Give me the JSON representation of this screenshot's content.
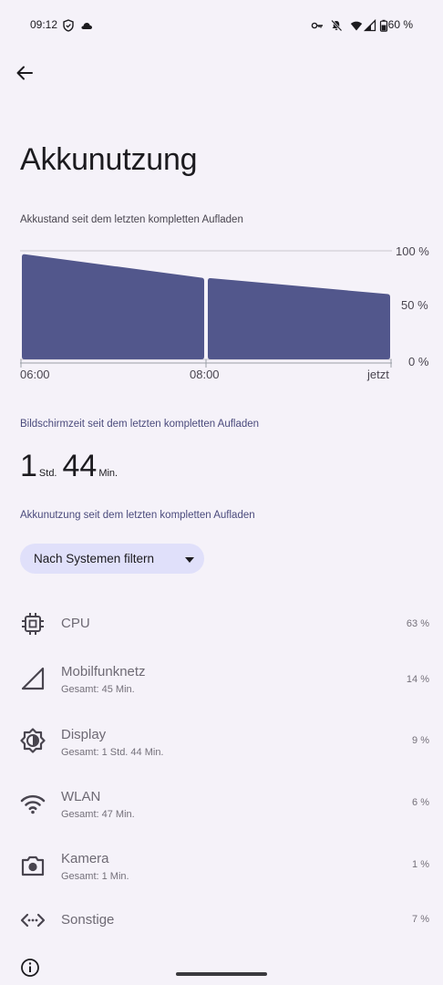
{
  "status_bar": {
    "time": "09:12",
    "battery": "60 %"
  },
  "page": {
    "title": "Akkunutzung"
  },
  "chart_section": {
    "subtitle": "Akkustand seit dem letzten kompletten Aufladen"
  },
  "chart_data": {
    "type": "area",
    "x": [
      "06:00",
      "08:00",
      "jetzt"
    ],
    "ytick_labels": [
      "100 %",
      "50 %",
      "0 %"
    ],
    "ylim": [
      0,
      100
    ],
    "segments": [
      {
        "points": [
          [
            0,
            97
          ],
          [
            1,
            75
          ]
        ]
      },
      {
        "points": [
          [
            1,
            75
          ],
          [
            2,
            60
          ]
        ]
      }
    ],
    "fill_color": "#52578c"
  },
  "screen_time": {
    "label": "Bildschirmzeit seit dem letzten kompletten Aufladen",
    "hours": "1",
    "hours_unit": "Std.",
    "minutes": "44",
    "minutes_unit": "Min."
  },
  "usage": {
    "label": "Akkunutzung seit dem letzten kompletten Aufladen",
    "filter_label": "Nach Systemen filtern",
    "items": [
      {
        "name": "CPU",
        "detail": "",
        "percent": "63 %",
        "icon": "cpu-icon"
      },
      {
        "name": "Mobilfunknetz",
        "detail": "Gesamt: 45 Min.",
        "percent": "14 %",
        "icon": "cell-signal-icon"
      },
      {
        "name": "Display",
        "detail": "Gesamt: 1 Std. 44 Min.",
        "percent": "9 %",
        "icon": "brightness-icon"
      },
      {
        "name": "WLAN",
        "detail": "Gesamt: 47 Min.",
        "percent": "6 %",
        "icon": "wifi-icon"
      },
      {
        "name": "Kamera",
        "detail": "Gesamt: 1 Min.",
        "percent": "1 %",
        "icon": "camera-icon"
      },
      {
        "name": "Sonstige",
        "detail": "",
        "percent": "7 %",
        "icon": "code-icon"
      }
    ]
  }
}
